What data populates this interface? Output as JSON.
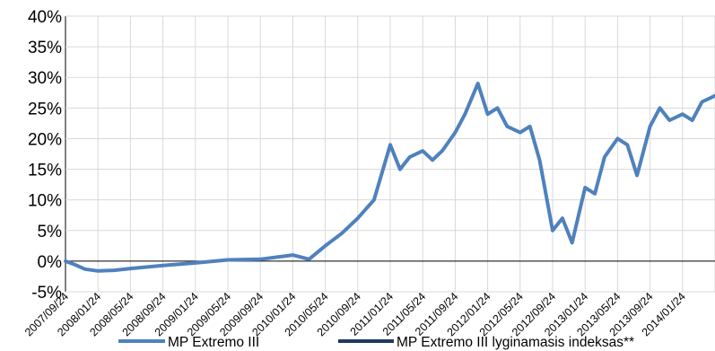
{
  "chart_data": {
    "type": "line",
    "ylim": [
      -5,
      40
    ],
    "y_ticks": [
      "-5%",
      "0%",
      "5%",
      "10%",
      "15%",
      "20%",
      "25%",
      "30%",
      "35%",
      "40%"
    ],
    "x_ticks": [
      "2007/09/24",
      "2008/01/24",
      "2008/05/24",
      "2008/09/24",
      "2009/01/24",
      "2009/05/24",
      "2009/09/24",
      "2010/01/24",
      "2010/05/24",
      "2010/09/24",
      "2011/01/24",
      "2011/05/24",
      "2011/09/24",
      "2012/01/24",
      "2012/05/24",
      "2012/09/24",
      "2013/01/24",
      "2013/05/24",
      "2013/09/24",
      "2014/01/24"
    ],
    "grid": true,
    "legend_position": "bottom",
    "series": [
      {
        "name": "MP Extremo III",
        "color": "#4f81bd",
        "x": [
          0,
          0.3,
          0.6,
          1.0,
          1.5,
          2.0,
          3.0,
          4.0,
          5.0,
          6.0,
          7.0,
          7.5,
          8.0,
          8.5,
          9.0,
          9.5,
          10.0,
          10.3,
          10.6,
          11.0,
          11.3,
          11.6,
          12.0,
          12.3,
          12.7,
          13.0,
          13.3,
          13.6,
          14.0,
          14.3,
          14.6,
          15.0,
          15.3,
          15.6,
          16.0,
          16.3,
          16.6,
          17.0,
          17.3,
          17.6,
          18.0,
          18.3,
          18.6,
          19.0,
          19.3,
          19.6,
          20.0
        ],
        "y": [
          0.0,
          -0.6,
          -1.3,
          -1.6,
          -1.5,
          -1.2,
          -0.7,
          -0.3,
          0.2,
          0.3,
          1.0,
          0.3,
          2.5,
          4.5,
          7.0,
          10.0,
          19.0,
          15.0,
          17.0,
          18.0,
          16.5,
          18.0,
          21.0,
          24.0,
          29.0,
          24.0,
          25.0,
          22.0,
          21.0,
          22.0,
          16.5,
          5.0,
          7.0,
          3.0,
          12.0,
          11.0,
          17.0,
          20.0,
          19.0,
          14.0,
          22.0,
          25.0,
          23.0,
          24.0,
          23.0,
          26.0,
          27.0
        ]
      },
      {
        "name": "MP Extremo III lyginamasis indeksas**",
        "color": "#1f3864",
        "x": [],
        "y": []
      }
    ]
  }
}
